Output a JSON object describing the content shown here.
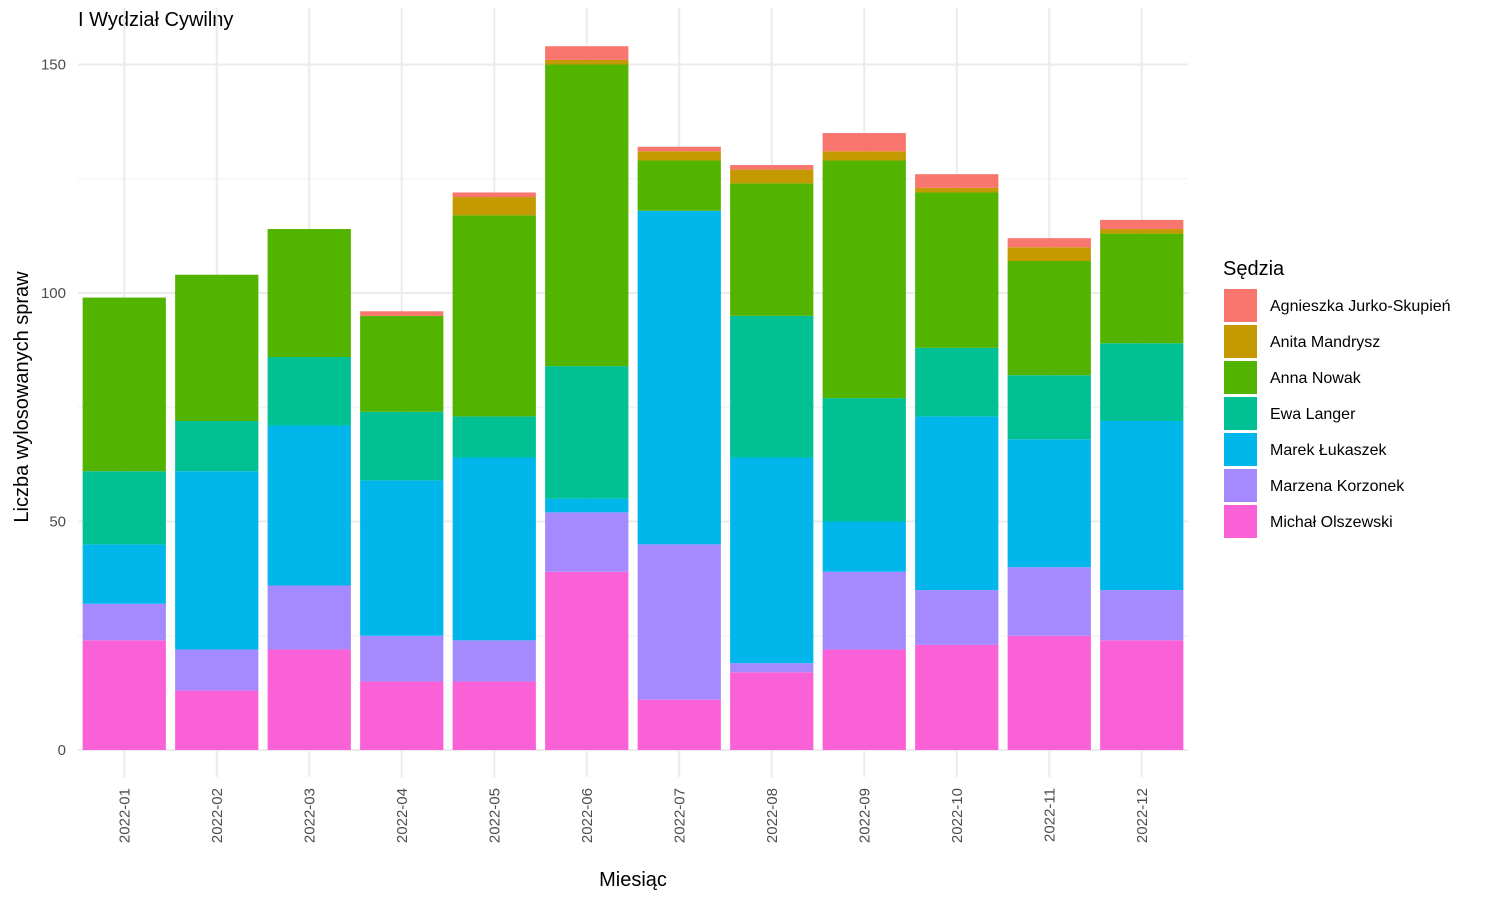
{
  "chart_data": {
    "type": "bar",
    "stacked": true,
    "title": "I Wydział Cywilny",
    "xlabel": "Miesiąc",
    "ylabel": "Liczba wylosowanych spraw",
    "ylim": [
      0,
      160
    ],
    "yticks": [
      0,
      50,
      100,
      150
    ],
    "grid": true,
    "legend_position": "right",
    "legend_title": "Sędzia",
    "categories": [
      "2022-01",
      "2022-02",
      "2022-03",
      "2022-04",
      "2022-05",
      "2022-06",
      "2022-07",
      "2022-08",
      "2022-09",
      "2022-10",
      "2022-11",
      "2022-12"
    ],
    "series": [
      {
        "name": "Agnieszka Jurko-Skupień",
        "color": "#F8766D",
        "values": [
          0,
          0,
          0,
          1,
          1,
          3,
          1,
          1,
          4,
          3,
          2,
          2
        ]
      },
      {
        "name": "Anita Mandrysz",
        "color": "#C49A00",
        "values": [
          0,
          0,
          0,
          0,
          4,
          1,
          2,
          3,
          2,
          1,
          3,
          1
        ]
      },
      {
        "name": "Anna Nowak",
        "color": "#53B400",
        "values": [
          38,
          32,
          28,
          21,
          44,
          66,
          11,
          29,
          52,
          34,
          25,
          24
        ]
      },
      {
        "name": "Ewa Langer",
        "color": "#00C094",
        "values": [
          16,
          11,
          15,
          15,
          9,
          29,
          0,
          31,
          27,
          15,
          14,
          17
        ]
      },
      {
        "name": "Marek Łukaszek",
        "color": "#00B6EB",
        "values": [
          13,
          39,
          35,
          34,
          40,
          3,
          73,
          45,
          11,
          38,
          28,
          37
        ]
      },
      {
        "name": "Marzena Korzonek",
        "color": "#A58AFF",
        "values": [
          8,
          9,
          14,
          10,
          9,
          13,
          34,
          2,
          17,
          12,
          15,
          11
        ]
      },
      {
        "name": "Michał Olszewski",
        "color": "#FB61D7",
        "values": [
          24,
          13,
          22,
          15,
          15,
          39,
          11,
          17,
          22,
          23,
          25,
          24
        ]
      }
    ]
  }
}
